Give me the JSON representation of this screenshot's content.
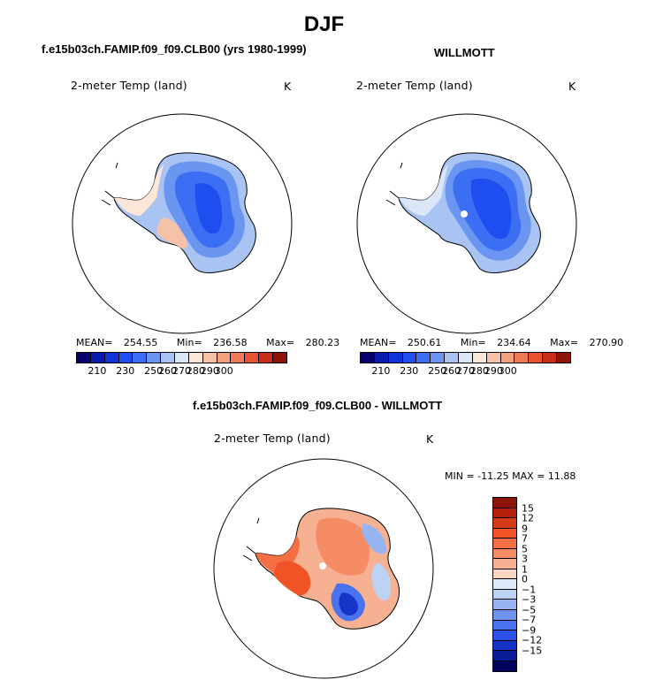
{
  "page_title": "DJF",
  "panels": {
    "model": {
      "title": "f.e15b03ch.FAMIP.f09_f09.CLB00 (yrs 1980-1999)",
      "subtitle": "2-meter Temp (land)",
      "units": "K",
      "mean_label": "MEAN=",
      "mean": "254.55",
      "min_label": "Min=",
      "min": "236.58",
      "max_label": "Max=",
      "max": "280.23"
    },
    "obs": {
      "title": "WILLMOTT",
      "subtitle": "2-meter Temp (land)",
      "units": "K",
      "mean_label": "MEAN=",
      "mean": "250.61",
      "min_label": "Min=",
      "min": "234.64",
      "max_label": "Max=",
      "max": "270.90"
    },
    "diff": {
      "title": "f.e15b03ch.FAMIP.f09_f09.CLB00 - WILLMOTT",
      "subtitle": "2-meter Temp (land)",
      "units": "K",
      "minmax_text": "MIN = -11.25 MAX =  11.88"
    }
  },
  "temp_colorbar": {
    "colors": [
      "#03006b",
      "#0a1bb0",
      "#1233d6",
      "#1f4ef0",
      "#3b6ef2",
      "#6a96f2",
      "#a9c4f2",
      "#dbe7f8",
      "#fbe6d8",
      "#f6c2a7",
      "#f3a07d",
      "#ef7b56",
      "#e7522f",
      "#c82e17",
      "#8e1408"
    ],
    "ticks": [
      "210",
      "230",
      "250",
      "260",
      "270",
      "280",
      "290",
      "300"
    ]
  },
  "diff_colorbar": {
    "colors": [
      "#8e1408",
      "#b4200c",
      "#d43a14",
      "#f05426",
      "#f46f43",
      "#f58c66",
      "#f6b092",
      "#f9d6c2",
      "#ddeaf8",
      "#bcd3f5",
      "#95b4f1",
      "#6d92ef",
      "#4a71ee",
      "#2c51e8",
      "#1435c8",
      "#0a1c98",
      "#02055f"
    ],
    "ticks": [
      "15",
      "12",
      "9",
      "7",
      "5",
      "3",
      "1",
      "0",
      "−1",
      "−3",
      "−5",
      "−7",
      "−9",
      "−12",
      "−15"
    ]
  }
}
